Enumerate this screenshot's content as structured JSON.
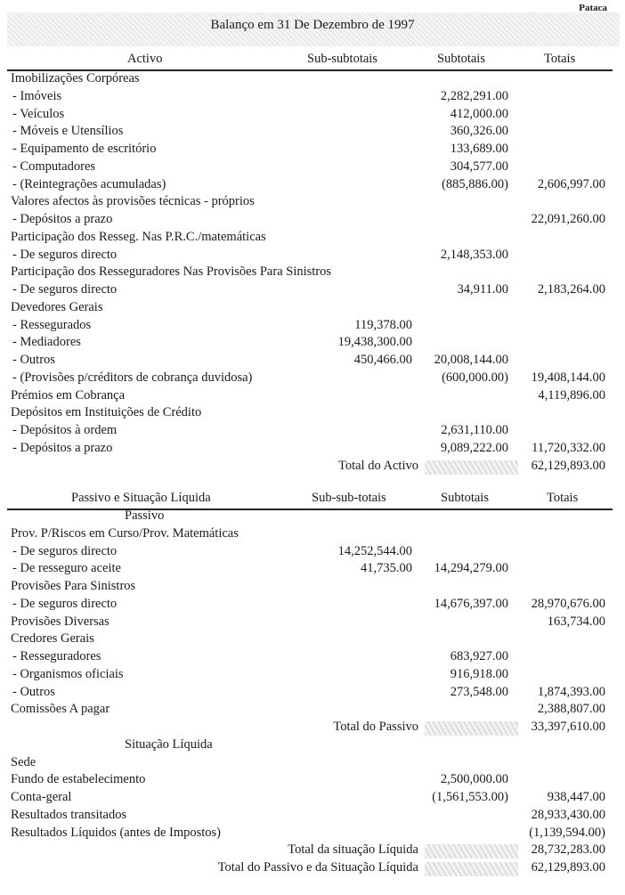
{
  "currency": "Pataca",
  "title": "Balanço em 31 De Dezembro de 1997",
  "activo": {
    "headers": [
      "Activo",
      "Sub-subtotais",
      "Subtotais",
      "Totais"
    ],
    "rows": [
      {
        "label": "Imobilizações Corpóreas",
        "c1": "",
        "c2": "",
        "c3": "",
        "type": "head"
      },
      {
        "label": "- Imóveis",
        "c1": "",
        "c2": "2,282,291.00",
        "c3": "",
        "type": "sub"
      },
      {
        "label": "- Veículos",
        "c1": "",
        "c2": "412,000.00",
        "c3": "",
        "type": "sub"
      },
      {
        "label": "- Móveis e Utensílios",
        "c1": "",
        "c2": "360,326.00",
        "c3": "",
        "type": "sub"
      },
      {
        "label": "- Equipamento de escritório",
        "c1": "",
        "c2": "133,689.00",
        "c3": "",
        "type": "sub"
      },
      {
        "label": "- Computadores",
        "c1": "",
        "c2": "304,577.00",
        "c3": "",
        "type": "sub"
      },
      {
        "label": "- (Reintegrações acumuladas)",
        "c1": "",
        "c2": "(885,886.00)",
        "c3": "2,606,997.00",
        "type": "sub"
      },
      {
        "label": "Valores afectos às provisões técnicas - próprios",
        "c1": "",
        "c2": "",
        "c3": "",
        "type": "head"
      },
      {
        "label": "- Depósitos a prazo",
        "c1": "",
        "c2": "",
        "c3": "22,091,260.00",
        "type": "sub"
      },
      {
        "label": "Participação dos Resseg. Nas P.R.C./matemáticas",
        "c1": "",
        "c2": "",
        "c3": "",
        "type": "head"
      },
      {
        "label": "- De seguros directo",
        "c1": "",
        "c2": "2,148,353.00",
        "c3": "",
        "type": "sub"
      },
      {
        "label": "Participação dos Resseguradores Nas Provisões Para Sinistros",
        "c1": "",
        "c2": "",
        "c3": "",
        "type": "head"
      },
      {
        "label": "- De seguros directo",
        "c1": "",
        "c2": "34,911.00",
        "c3": "2,183,264.00",
        "type": "sub"
      },
      {
        "label": "Devedores Gerais",
        "c1": "",
        "c2": "",
        "c3": "",
        "type": "head"
      },
      {
        "label": "- Ressegurados",
        "c1": "119,378.00",
        "c2": "",
        "c3": "",
        "type": "sub"
      },
      {
        "label": "- Mediadores",
        "c1": "19,438,300.00",
        "c2": "",
        "c3": "",
        "type": "sub"
      },
      {
        "label": "- Outros",
        "c1": "450,466.00",
        "c2": "20,008,144.00",
        "c3": "",
        "type": "sub"
      },
      {
        "label": "- (Provisões p/créditors de cobrança duvidosa)",
        "c1": "",
        "c2": "(600,000.00)",
        "c3": "19,408,144.00",
        "type": "sub"
      },
      {
        "label": "Prémios em Cobrança",
        "c1": "",
        "c2": "",
        "c3": "4,119,896.00",
        "type": "head"
      },
      {
        "label": "Depósitos em Instituições de Crédito",
        "c1": "",
        "c2": "",
        "c3": "",
        "type": "head"
      },
      {
        "label": "- Depósitos à ordem",
        "c1": "",
        "c2": "2,631,110.00",
        "c3": "",
        "type": "sub"
      },
      {
        "label": "- Depósitos a prazo",
        "c1": "",
        "c2": "9,089,222.00",
        "c3": "11,720,332.00",
        "type": "sub"
      },
      {
        "label": "Total do Activo",
        "c1": "",
        "c2": "",
        "c3": "62,129,893.00",
        "type": "total"
      }
    ]
  },
  "passivo": {
    "headers": [
      "Passivo e Situação Líquida",
      "Sub-sub-totais",
      "Subtotais",
      "Totais"
    ],
    "rows": [
      {
        "label": "Passivo",
        "c1": "",
        "c2": "",
        "c3": "",
        "type": "center"
      },
      {
        "label": "Prov. P/Riscos em Curso/Prov. Matemáticas",
        "c1": "",
        "c2": "",
        "c3": "",
        "type": "head"
      },
      {
        "label": "- De seguros directo",
        "c1": "14,252,544.00",
        "c2": "",
        "c3": "",
        "type": "sub"
      },
      {
        "label": "- De resseguro aceite",
        "c1": "41,735.00",
        "c2": "14,294,279.00",
        "c3": "",
        "type": "sub"
      },
      {
        "label": "Provisões Para Sinistros",
        "c1": "",
        "c2": "",
        "c3": "",
        "type": "head"
      },
      {
        "label": "- De seguros directo",
        "c1": "",
        "c2": "14,676,397.00",
        "c3": "28,970,676.00",
        "type": "sub"
      },
      {
        "label": "Provisões Diversas",
        "c1": "",
        "c2": "",
        "c3": "163,734.00",
        "type": "head"
      },
      {
        "label": "Credores Gerais",
        "c1": "",
        "c2": "",
        "c3": "",
        "type": "head"
      },
      {
        "label": "- Resseguradores",
        "c1": "",
        "c2": "683,927.00",
        "c3": "",
        "type": "sub"
      },
      {
        "label": "- Organismos oficiais",
        "c1": "",
        "c2": "916,918.00",
        "c3": "",
        "type": "sub"
      },
      {
        "label": "- Outros",
        "c1": "",
        "c2": "273,548.00",
        "c3": "1,874,393.00",
        "type": "sub"
      },
      {
        "label": "Comissões A pagar",
        "c1": "",
        "c2": "",
        "c3": "2,388,807.00",
        "type": "head"
      },
      {
        "label": "Total do Passivo",
        "c1": "",
        "c2": "",
        "c3": "33,397,610.00",
        "type": "total"
      },
      {
        "label": "Situação Líquida",
        "c1": "",
        "c2": "",
        "c3": "",
        "type": "center"
      },
      {
        "label": "Sede",
        "c1": "",
        "c2": "",
        "c3": "",
        "type": "head"
      },
      {
        "label": "Fundo de estabelecimento",
        "c1": "",
        "c2": "2,500,000.00",
        "c3": "",
        "type": "head"
      },
      {
        "label": "Conta-geral",
        "c1": "",
        "c2": "(1,561,553.00)",
        "c3": "938,447.00",
        "type": "head"
      },
      {
        "label": "Resultados transitados",
        "c1": "",
        "c2": "",
        "c3": "28,933,430.00",
        "type": "head"
      },
      {
        "label": "Resultados Líquidos (antes de Impostos)",
        "c1": "",
        "c2": "",
        "c3": "(1,139,594.00)",
        "type": "head"
      },
      {
        "label": "Total da situação Líquida",
        "c1": "",
        "c2": "",
        "c3": "28,732,283.00",
        "type": "total"
      },
      {
        "label": "Total do Passivo e da Situação Líquida",
        "c1": "",
        "c2": "",
        "c3": "62,129,893.00",
        "type": "total"
      }
    ]
  }
}
